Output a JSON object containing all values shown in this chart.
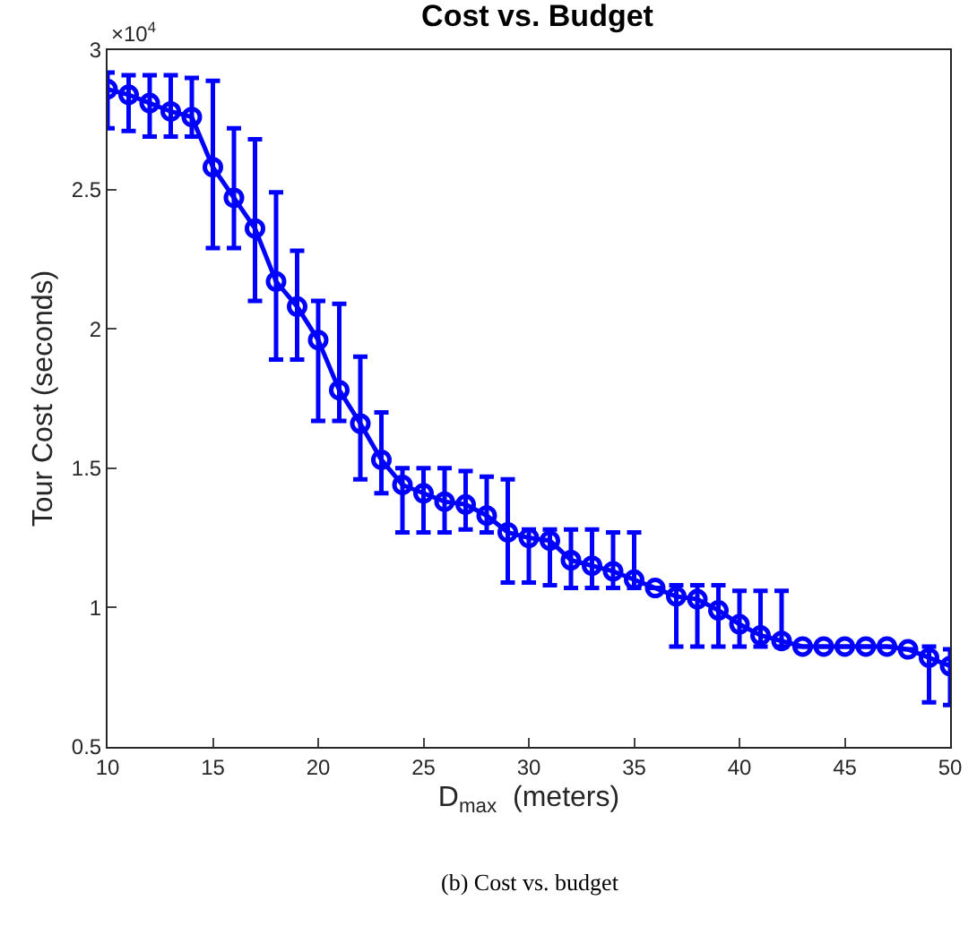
{
  "chart_data": {
    "type": "line",
    "title": "Cost vs. Budget",
    "xlabel": "D$_{max}$  (meters)",
    "ylabel": "Tour Cost (seconds)",
    "annotations": [
      "×10$^{4}$",
      "(b) Cost vs. budget"
    ],
    "x": [
      10,
      11,
      12,
      13,
      14,
      15,
      16,
      17,
      18,
      19,
      20,
      21,
      22,
      23,
      24,
      25,
      26,
      27,
      28,
      29,
      30,
      31,
      32,
      33,
      34,
      35,
      36,
      37,
      38,
      39,
      40,
      41,
      42,
      43,
      44,
      45,
      46,
      47,
      48,
      49,
      50
    ],
    "series": [
      {
        "color": "#0000ff",
        "values": [
          2.86,
          2.84,
          2.81,
          2.78,
          2.76,
          2.58,
          2.47,
          2.36,
          2.17,
          2.08,
          1.96,
          1.78,
          1.66,
          1.53,
          1.44,
          1.41,
          1.38,
          1.37,
          1.33,
          1.27,
          1.25,
          1.24,
          1.17,
          1.15,
          1.13,
          1.1,
          1.07,
          1.04,
          1.03,
          0.99,
          0.94,
          0.9,
          0.88,
          0.86,
          0.86,
          0.86,
          0.86,
          0.86,
          0.85,
          0.82,
          0.79
        ],
        "errors": [
          [
            2.72,
            2.92
          ],
          [
            2.71,
            2.91
          ],
          [
            2.69,
            2.91
          ],
          [
            2.69,
            2.91
          ],
          [
            2.69,
            2.9
          ],
          [
            2.29,
            2.89
          ],
          [
            2.29,
            2.72
          ],
          [
            2.1,
            2.68
          ],
          [
            1.89,
            2.49
          ],
          [
            1.89,
            2.28
          ],
          [
            1.67,
            2.1
          ],
          [
            1.67,
            2.09
          ],
          [
            1.46,
            1.9
          ],
          [
            1.41,
            1.7
          ],
          [
            1.27,
            1.5
          ],
          [
            1.27,
            1.5
          ],
          [
            1.27,
            1.5
          ],
          [
            1.28,
            1.49
          ],
          [
            1.27,
            1.47
          ],
          [
            1.09,
            1.46
          ],
          [
            1.09,
            1.28
          ],
          [
            1.08,
            1.28
          ],
          [
            1.07,
            1.28
          ],
          [
            1.07,
            1.28
          ],
          [
            1.07,
            1.27
          ],
          [
            1.07,
            1.27
          ],
          null,
          [
            0.86,
            1.08
          ],
          [
            0.86,
            1.08
          ],
          [
            0.86,
            1.08
          ],
          [
            0.86,
            1.06
          ],
          [
            0.86,
            1.06
          ],
          [
            0.86,
            1.06
          ],
          null,
          null,
          null,
          null,
          null,
          null,
          [
            0.66,
            0.86
          ],
          [
            0.65,
            0.85
          ]
        ]
      }
    ],
    "xlim": [
      10,
      50
    ],
    "xticks": [
      10,
      15,
      20,
      25,
      30,
      35,
      40,
      45,
      50
    ],
    "ylim": [
      0.5,
      3
    ],
    "yticks": [
      0.5,
      1,
      1.5,
      2,
      2.5,
      3
    ],
    "grid": false,
    "marker": "circle",
    "line_style": "solid"
  }
}
